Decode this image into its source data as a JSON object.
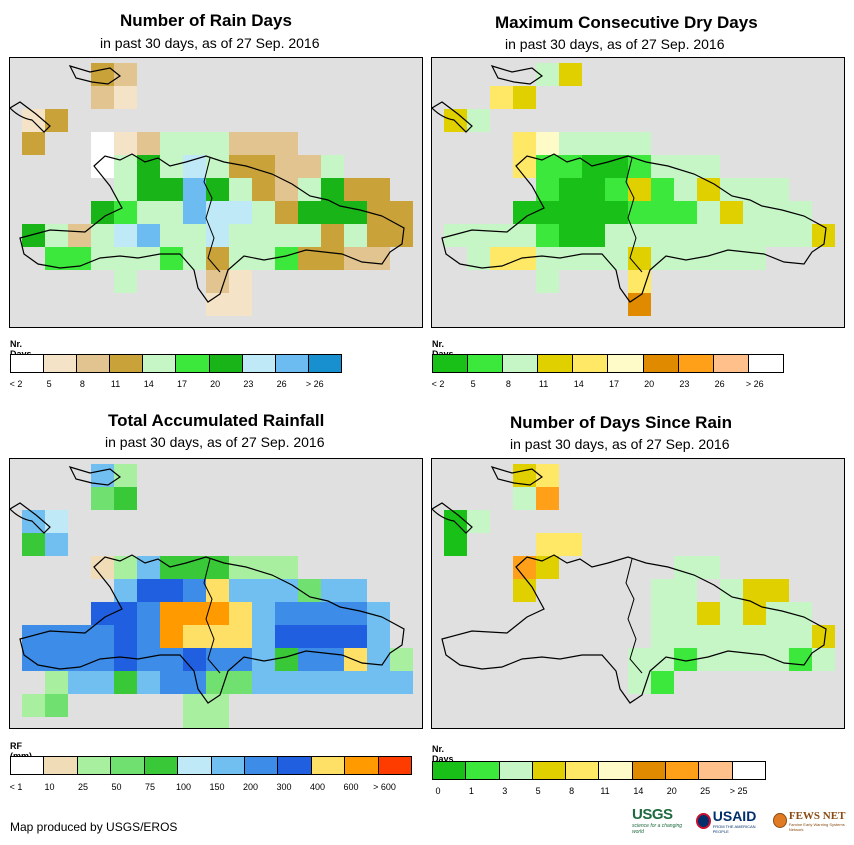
{
  "panels": [
    {
      "id": "rain-days",
      "title": "Number of Rain Days",
      "subtitle": "in past 30 days, as of 27 Sep. 2016",
      "legend_title": "Nr. Days",
      "legend_colors": [
        "#ffffff",
        "#f5e3c8",
        "#e1c48f",
        "#c9a23a",
        "#c6f5c6",
        "#3ce83c",
        "#18b418",
        "#bfe9f7",
        "#6cbcf2",
        "#1890d0"
      ],
      "legend_labels": [
        "< 2",
        "5",
        "8",
        "11",
        "14",
        "17",
        "20",
        "23",
        "26",
        "> 26"
      ]
    },
    {
      "id": "dry-days",
      "title": "Maximum Consecutive Dry Days",
      "subtitle": "in past 30 days, as of 27 Sep. 2016",
      "legend_title": "Nr. Days",
      "legend_colors": [
        "#18c018",
        "#3ce83c",
        "#c6f5c6",
        "#e0d000",
        "#ffe866",
        "#fffbc8",
        "#e08a00",
        "#ffa018",
        "#ffc08c",
        "#ffffff"
      ],
      "legend_labels": [
        "< 2",
        "5",
        "8",
        "11",
        "14",
        "17",
        "20",
        "23",
        "26",
        "> 26"
      ]
    },
    {
      "id": "total-rainfall",
      "title": "Total Accumulated Rainfall",
      "subtitle": "in past 30 days, as of 27 Sep. 2016",
      "legend_title": "RF (mm)",
      "legend_colors": [
        "#ffffff",
        "#f0ddb8",
        "#a8f0a0",
        "#70e070",
        "#38c838",
        "#bfe9f7",
        "#70bff0",
        "#3c8ce8",
        "#2060e0",
        "#ffe066",
        "#ff9a00",
        "#ff3c00"
      ],
      "legend_labels": [
        "< 1",
        "10",
        "25",
        "50",
        "75",
        "100",
        "150",
        "200",
        "300",
        "400",
        "600",
        "> 600"
      ]
    },
    {
      "id": "days-since-rain",
      "title": "Number of Days Since Rain",
      "subtitle": "in past 30 days, as of 27 Sep. 2016",
      "legend_title": "Nr. Days",
      "legend_colors": [
        "#18c018",
        "#3ce83c",
        "#c6f5c6",
        "#e0d000",
        "#ffe866",
        "#fffbc8",
        "#e08a00",
        "#ffa018",
        "#ffc08c",
        "#ffffff"
      ],
      "legend_labels": [
        "0",
        "1",
        "3",
        "5",
        "8",
        "11",
        "14",
        "20",
        "25",
        "> 25"
      ]
    }
  ],
  "footer": "Map produced by USGS/EROS",
  "logos": {
    "usgs": "USGS",
    "usgs_tag": "science for a changing world",
    "usaid": "USAID",
    "usaid_tag": "FROM THE AMERICAN PEOPLE",
    "fews": "FEWS NET",
    "fews_tag": "Famine Early Warning Systems Network"
  }
}
